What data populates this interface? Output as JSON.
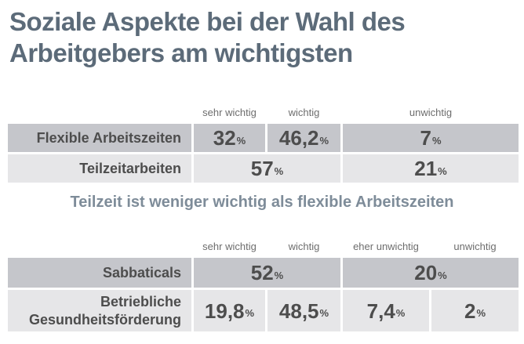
{
  "title": {
    "line1": "Soziale Aspekte bei der Wahl des",
    "line2": "Arbeitgebers am wichtigsten"
  },
  "note": "Teilzeit ist weniger wichtig als flexible Arbeitszeiten",
  "colors": {
    "title_text": "#5c6b79",
    "note_text": "#7e8c99",
    "row_dark_bg": "#c5c6cb",
    "row_light_bg": "#e6e6e8",
    "value_text": "#4d4d4d",
    "column_header_text": "#6d6d6d"
  },
  "table1": {
    "headers": [
      "sehr wichtig",
      "wichtig",
      "unwichtig"
    ],
    "rows": [
      {
        "label": "Flexible Arbeitszeiten",
        "cells": [
          {
            "value": "32",
            "unit": "%"
          },
          {
            "value": "46,2",
            "unit": "%"
          },
          {
            "value": "7",
            "unit": "%"
          }
        ]
      },
      {
        "label": "Teilzeitarbeiten",
        "cells": [
          {
            "value": "57",
            "unit": "%"
          },
          {
            "value": "21",
            "unit": "%"
          }
        ]
      }
    ]
  },
  "table2": {
    "headers": [
      "sehr wichtig",
      "wichtig",
      "eher unwichtig",
      "unwichtig"
    ],
    "rows": [
      {
        "label": "Sabbaticals",
        "cells": [
          {
            "value": "52",
            "unit": "%"
          },
          {
            "value": "20",
            "unit": "%"
          }
        ]
      },
      {
        "label": "Betriebliche Gesundheitsförderung",
        "cells": [
          {
            "value": "19,8",
            "unit": "%"
          },
          {
            "value": "48,5",
            "unit": "%"
          },
          {
            "value": "7,4",
            "unit": "%"
          },
          {
            "value": "2",
            "unit": "%"
          }
        ]
      }
    ]
  },
  "chart_data": {
    "type": "table",
    "title": "Soziale Aspekte bei der Wahl des Arbeitgebers am wichtigsten",
    "annotation": "Teilzeit ist weniger wichtig als flexible Arbeitszeiten",
    "unit": "%",
    "tables": [
      {
        "columns": [
          "sehr wichtig",
          "wichtig",
          "unwichtig"
        ],
        "rows": [
          {
            "label": "Flexible Arbeitszeiten",
            "sehr_wichtig": 32,
            "wichtig": 46.2,
            "unwichtig": 7
          },
          {
            "label": "Teilzeitarbeiten",
            "sehr_wichtig_und_wichtig_merged": 57,
            "unwichtig": 21
          }
        ]
      },
      {
        "columns": [
          "sehr wichtig",
          "wichtig",
          "eher unwichtig",
          "unwichtig"
        ],
        "rows": [
          {
            "label": "Sabbaticals",
            "sehr_wichtig_und_wichtig_merged": 52,
            "eher_unwichtig_und_unwichtig_merged": 20
          },
          {
            "label": "Betriebliche Gesundheitsförderung",
            "sehr_wichtig": 19.8,
            "wichtig": 48.5,
            "eher_unwichtig": 7.4,
            "unwichtig": 2
          }
        ]
      }
    ]
  }
}
